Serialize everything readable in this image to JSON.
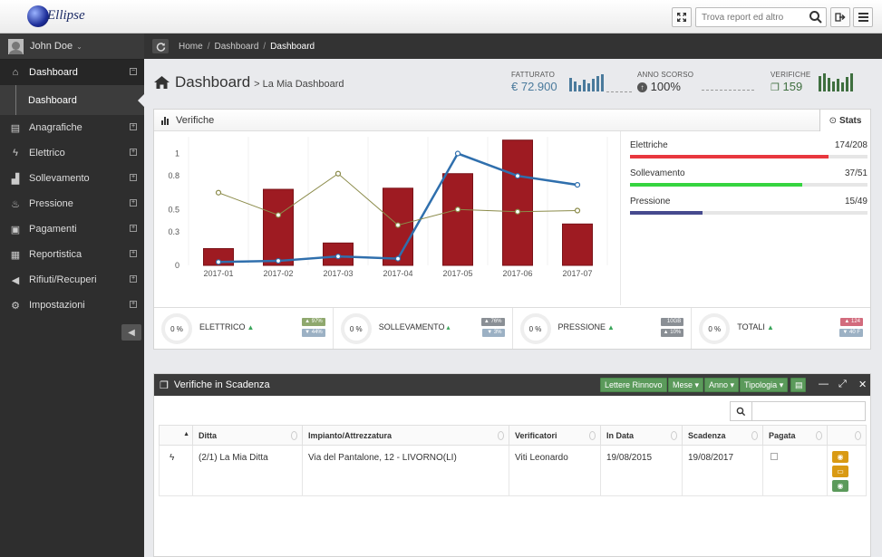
{
  "app": {
    "logo_text": "Ellipse"
  },
  "header": {
    "search_placeholder": "Trova report ed altro"
  },
  "user": {
    "name": "John Doe"
  },
  "sidebar": {
    "items": [
      {
        "label": "Dashboard",
        "icon": "home-icon"
      },
      {
        "label": "Anagrafiche",
        "icon": "contacts-icon"
      },
      {
        "label": "Elettrico",
        "icon": "bolt-icon"
      },
      {
        "label": "Sollevamento",
        "icon": "industry-icon"
      },
      {
        "label": "Pressione",
        "icon": "fire-icon"
      },
      {
        "label": "Pagamenti",
        "icon": "money-icon"
      },
      {
        "label": "Reportistica",
        "icon": "report-icon"
      },
      {
        "label": "Rifiuti/Recuperi",
        "icon": "megaphone-icon"
      },
      {
        "label": "Impostazioni",
        "icon": "cog-icon"
      }
    ],
    "sub_item": "Dashboard"
  },
  "breadcrumb": [
    "Home",
    "Dashboard",
    "Dashboard"
  ],
  "page": {
    "title": "Dashboard",
    "subtitle": "> La Mia Dashboard"
  },
  "stats": [
    {
      "label": "FATTURATO",
      "value": "€ 72.900",
      "color": "#4a7a9c"
    },
    {
      "label": "ANNO SCORSO",
      "value": "100%"
    },
    {
      "label": "VERIFICHE",
      "value": "159",
      "color": "#3f6f3f"
    }
  ],
  "panel1": {
    "title": "Verifiche",
    "tab": "Stats"
  },
  "chart_data": {
    "type": "bar",
    "categories": [
      "2017-01",
      "2017-02",
      "2017-03",
      "2017-04",
      "2017-05",
      "2017-06",
      "2017-07"
    ],
    "yticks": [
      "1",
      "0.8",
      "0.5",
      "0.3",
      "0"
    ],
    "bar_values": [
      0.15,
      0.68,
      0.2,
      0.69,
      0.82,
      1.12,
      0.37
    ],
    "series": [
      {
        "type": "line",
        "color": "#2f6fad",
        "values": [
          0.03,
          0.04,
          0.08,
          0.06,
          1.0,
          0.8,
          0.72
        ]
      },
      {
        "type": "line",
        "color": "#8b8b4a",
        "values": [
          0.65,
          0.45,
          0.82,
          0.36,
          0.5,
          0.48,
          0.49
        ]
      }
    ],
    "ylim": [
      0,
      1.15
    ]
  },
  "progress": [
    {
      "label": "Elettriche",
      "value": "174/208",
      "fraction": 0.836,
      "color": "#e8373e"
    },
    {
      "label": "Sollevamento",
      "value": "37/51",
      "fraction": 0.725,
      "color": "#35d43f"
    },
    {
      "label": "Pressione",
      "value": "15/49",
      "fraction": 0.306,
      "color": "#464a8e"
    }
  ],
  "kpis": [
    {
      "percent": "0 %",
      "label": "ELETTRICO",
      "b1": "▲ 97%",
      "b2": "▼ 44%",
      "c1": "#8fa86e",
      "c2": "#9cb1c4"
    },
    {
      "percent": "0 %",
      "label": "SOLLEVAMENTO",
      "b1": "▲ 76%",
      "b2": "▼ 3%",
      "c1": "#8a8f95",
      "c2": "#9cb1c4"
    },
    {
      "percent": "0 %",
      "label": "PRESSIONE",
      "b1": "10GB",
      "b2": "▲ 10%",
      "c1": "#8a8f95",
      "c2": "#8a8f95"
    },
    {
      "percent": "0 %",
      "label": "TOTALI",
      "b1": "▲ 124",
      "b2": "▼ 40 F",
      "c1": "#d26b7d",
      "c2": "#9cb1c4"
    }
  ],
  "panel2": {
    "title": "Verifiche in Scadenza",
    "buttons": [
      "Lettere Rinnovo",
      "Mese ▾",
      "Anno ▾",
      "Tipologia ▾"
    ]
  },
  "table": {
    "headers": [
      "",
      "Ditta",
      "Impianto/Attrezzatura",
      "Verificatori",
      "In Data",
      "Scadenza",
      "Pagata",
      ""
    ],
    "rows": [
      [
        "(2/1) La Mia Ditta",
        "Via del Pantalone, 12 - LIVORNO(LI)",
        "Viti Leonardo",
        "19/08/2015",
        "19/08/2017"
      ]
    ]
  }
}
